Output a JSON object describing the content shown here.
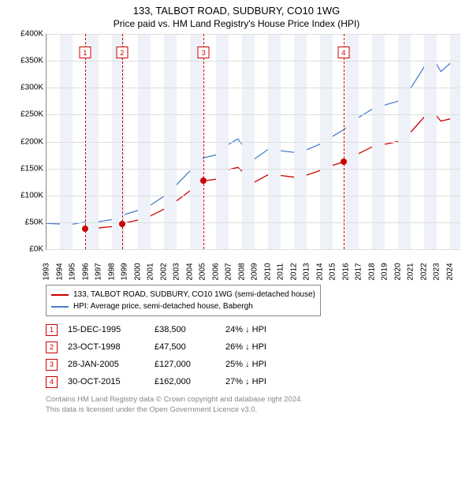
{
  "title": "133, TALBOT ROAD, SUDBURY, CO10 1WG",
  "subtitle": "Price paid vs. HM Land Registry's House Price Index (HPI)",
  "chart": {
    "type": "line",
    "x_min": 1993,
    "x_max": 2024.8,
    "y_min": 0,
    "y_max": 400000,
    "y_tick_step": 50000,
    "y_tick_labels": [
      "£0K",
      "£50K",
      "£100K",
      "£150K",
      "£200K",
      "£250K",
      "£300K",
      "£350K",
      "£400K"
    ],
    "x_ticks": [
      1993,
      1994,
      1995,
      1996,
      1997,
      1998,
      1999,
      2000,
      2001,
      2002,
      2003,
      2004,
      2005,
      2006,
      2007,
      2008,
      2009,
      2010,
      2011,
      2012,
      2013,
      2014,
      2015,
      2016,
      2017,
      2018,
      2019,
      2020,
      2021,
      2022,
      2023,
      2024
    ],
    "background_color": "#ffffff",
    "shading_color": "#eef2f8",
    "grid_color": "#dddddd",
    "shaded_year_pairs": [
      [
        1994,
        1995
      ],
      [
        1996,
        1997
      ],
      [
        1998,
        1999
      ],
      [
        2000,
        2001
      ],
      [
        2002,
        2003
      ],
      [
        2004,
        2005
      ],
      [
        2006,
        2007
      ],
      [
        2008,
        2009
      ],
      [
        2010,
        2011
      ],
      [
        2012,
        2013
      ],
      [
        2014,
        2015
      ],
      [
        2016,
        2017
      ],
      [
        2018,
        2019
      ],
      [
        2020,
        2021
      ],
      [
        2022,
        2023
      ],
      [
        2024,
        2024.8
      ]
    ],
    "series": {
      "hpi": {
        "label": "HPI: Average price, semi-detached house, Babergh",
        "color": "#4a7fc9",
        "line_width": 1.3,
        "points": [
          [
            1993,
            48000
          ],
          [
            1994,
            47000
          ],
          [
            1995,
            46500
          ],
          [
            1995.96,
            50500
          ],
          [
            1997,
            51000
          ],
          [
            1998,
            55000
          ],
          [
            1998.81,
            63000
          ],
          [
            2000,
            72000
          ],
          [
            2001,
            82000
          ],
          [
            2002,
            98000
          ],
          [
            2003,
            120000
          ],
          [
            2004,
            145000
          ],
          [
            2005.07,
            170000
          ],
          [
            2006,
            175000
          ],
          [
            2007,
            195000
          ],
          [
            2007.7,
            205000
          ],
          [
            2008.5,
            180000
          ],
          [
            2009,
            168000
          ],
          [
            2010,
            185000
          ],
          [
            2011,
            183000
          ],
          [
            2012,
            180000
          ],
          [
            2013,
            185000
          ],
          [
            2014,
            195000
          ],
          [
            2015,
            210000
          ],
          [
            2015.83,
            222000
          ],
          [
            2017,
            245000
          ],
          [
            2018,
            260000
          ],
          [
            2019,
            268000
          ],
          [
            2020,
            275000
          ],
          [
            2021,
            300000
          ],
          [
            2022,
            338000
          ],
          [
            2022.7,
            355000
          ],
          [
            2023.3,
            330000
          ],
          [
            2024,
            345000
          ],
          [
            2024.7,
            340000
          ]
        ]
      },
      "property": {
        "label": "133, TALBOT ROAD, SUDBURY, CO10 1WG (semi-detached house)",
        "color": "#cc0000",
        "line_width": 1.3,
        "points": [
          [
            1995.96,
            38500
          ],
          [
            1997,
            39500
          ],
          [
            1998,
            42000
          ],
          [
            1998.81,
            47500
          ],
          [
            2000,
            54000
          ],
          [
            2001,
            62000
          ],
          [
            2002,
            74000
          ],
          [
            2003,
            90000
          ],
          [
            2004,
            108000
          ],
          [
            2005.07,
            127000
          ],
          [
            2006,
            130000
          ],
          [
            2007,
            148000
          ],
          [
            2007.7,
            152000
          ],
          [
            2008.5,
            135000
          ],
          [
            2009,
            125000
          ],
          [
            2010,
            138000
          ],
          [
            2011,
            137000
          ],
          [
            2012,
            134000
          ],
          [
            2013,
            138000
          ],
          [
            2014,
            146000
          ],
          [
            2015,
            156000
          ],
          [
            2015.83,
            162000
          ],
          [
            2017,
            178000
          ],
          [
            2018,
            190000
          ],
          [
            2019,
            195000
          ],
          [
            2020,
            200000
          ],
          [
            2021,
            218000
          ],
          [
            2022,
            245000
          ],
          [
            2022.7,
            255000
          ],
          [
            2023.3,
            238000
          ],
          [
            2024,
            242000
          ],
          [
            2024.7,
            240000
          ]
        ]
      }
    },
    "sale_markers": [
      {
        "n": "1",
        "year": 1995.96,
        "value": 38500,
        "color": "#cc0000",
        "box_top_pct": 6
      },
      {
        "n": "2",
        "year": 1998.81,
        "value": 47500,
        "color": "#cc0000",
        "box_top_pct": 6
      },
      {
        "n": "3",
        "year": 2005.07,
        "value": 127000,
        "color": "#cc0000",
        "box_top_pct": 6
      },
      {
        "n": "4",
        "year": 2015.83,
        "value": 162000,
        "color": "#cc0000",
        "box_top_pct": 6
      }
    ]
  },
  "sales_table": {
    "rows": [
      {
        "n": "1",
        "date": "15-DEC-1995",
        "price": "£38,500",
        "hpi_delta": "24% ↓ HPI",
        "color": "#cc0000"
      },
      {
        "n": "2",
        "date": "23-OCT-1998",
        "price": "£47,500",
        "hpi_delta": "26% ↓ HPI",
        "color": "#cc0000"
      },
      {
        "n": "3",
        "date": "28-JAN-2005",
        "price": "£127,000",
        "hpi_delta": "25% ↓ HPI",
        "color": "#cc0000"
      },
      {
        "n": "4",
        "date": "30-OCT-2015",
        "price": "£162,000",
        "hpi_delta": "27% ↓ HPI",
        "color": "#cc0000"
      }
    ]
  },
  "footer": {
    "line1": "Contains HM Land Registry data © Crown copyright and database right 2024.",
    "line2": "This data is licensed under the Open Government Licence v3.0."
  }
}
